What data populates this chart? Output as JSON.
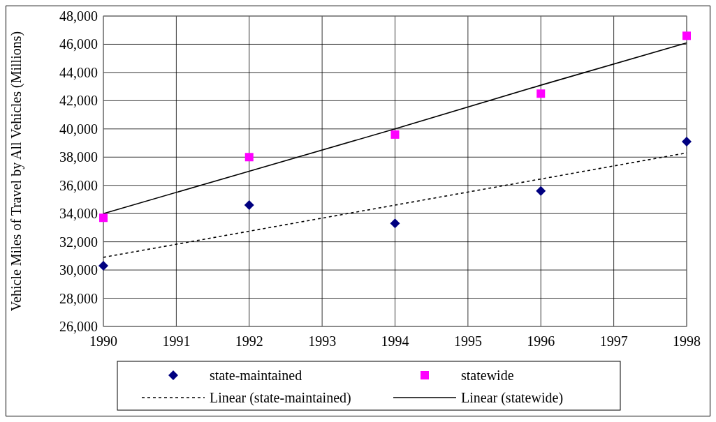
{
  "chart_data": {
    "type": "scatter",
    "ylabel": "Vehicle Miles of Travel by All Vehicles (Millions)",
    "x": [
      1990,
      1992,
      1994,
      1996,
      1998
    ],
    "series": [
      {
        "name": "state-maintained",
        "color": "#000080",
        "marker": "diamond",
        "values": [
          30300,
          34600,
          33300,
          35600,
          39100
        ]
      },
      {
        "name": "statewide",
        "color": "#ff00ff",
        "marker": "square",
        "values": [
          33700,
          38000,
          39600,
          42500,
          46600
        ]
      },
      {
        "name": "Linear (state-maintained)",
        "type": "line",
        "color": "#000000",
        "line_style": "dotted",
        "values": [
          30900,
          32750,
          34600,
          36450,
          38300
        ]
      },
      {
        "name": "Linear (statewide)",
        "type": "line",
        "color": "#000000",
        "line_style": "solid",
        "values": [
          34000,
          37000,
          40000,
          43100,
          46100
        ]
      }
    ],
    "xlim": [
      1990,
      1998
    ],
    "xticks": [
      1990,
      1991,
      1992,
      1993,
      1994,
      1995,
      1996,
      1997,
      1998
    ],
    "ylim": [
      26000,
      48000
    ],
    "yticks": [
      {
        "value": 26000,
        "label": "26,000"
      },
      {
        "value": 28000,
        "label": "28,000"
      },
      {
        "value": 30000,
        "label": "30,000"
      },
      {
        "value": 32000,
        "label": "32,000"
      },
      {
        "value": 34000,
        "label": "34,000"
      },
      {
        "value": 36000,
        "label": "36,000"
      },
      {
        "value": 38000,
        "label": "38,000"
      },
      {
        "value": 40000,
        "label": "40,000"
      },
      {
        "value": 42000,
        "label": "42,000"
      },
      {
        "value": 44000,
        "label": "44,000"
      },
      {
        "value": 46000,
        "label": "46,000"
      },
      {
        "value": 48000,
        "label": "48,000"
      }
    ],
    "grid": true,
    "legend": "bottom"
  }
}
